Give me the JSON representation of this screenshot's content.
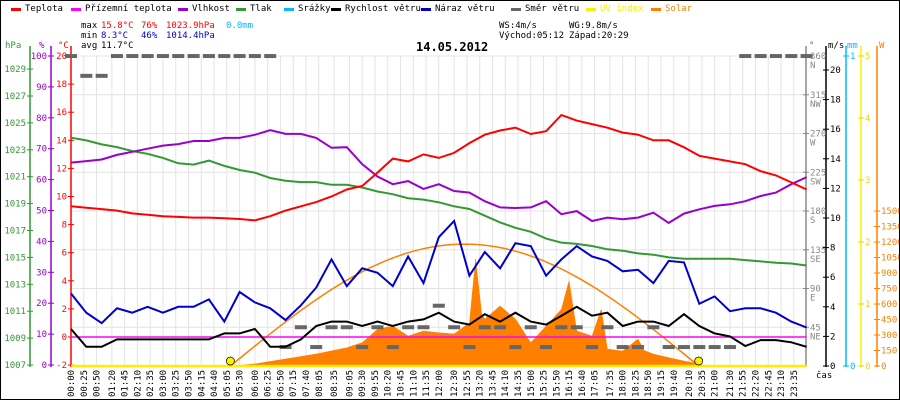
{
  "legend": [
    {
      "label": "Teplota",
      "color": "#ff0000"
    },
    {
      "label": "Přízemní teplota",
      "color": "#ff00ff"
    },
    {
      "label": "Vlhkost",
      "color": "#9900cc"
    },
    {
      "label": "Tlak",
      "color": "#339933"
    },
    {
      "label": "Srážky",
      "color": "#00bbff"
    },
    {
      "label": "Rychlost větru",
      "color": "#000000"
    },
    {
      "label": "Náraz větru",
      "color": "#0000cc"
    },
    {
      "label": "Směr větru",
      "color": "#666666"
    },
    {
      "label": "UV index",
      "color": "#ffee00"
    },
    {
      "label": "Solar",
      "color": "#ff8000"
    }
  ],
  "stats": {
    "max_label": "max",
    "max_temp": "15.8°C",
    "max_hum": "76%",
    "max_pres": "1023.9hPa",
    "rain": "0.0mm",
    "min_label": "min",
    "min_temp": "8.3°C",
    "min_hum": "46%",
    "min_pres": "1014.4hPa",
    "avg_label": "avg",
    "avg_temp": "11.7°C",
    "ws": "WS:4m/s",
    "wg": "WG:9.8m/s",
    "sunrise": "Východ:05:12",
    "sunset": "Západ:20:29"
  },
  "units": {
    "hpa": "hPa",
    "pct": "%",
    "c": "°C",
    "deg": "°",
    "ms": "m/s",
    "mm": "mm",
    "w": "W",
    "time": "čas"
  },
  "chart_data": {
    "type": "line",
    "title": "14.05.2012",
    "xlabel": "čas",
    "x_ticks": [
      "00:00",
      "00:25",
      "00:50",
      "01:20",
      "01:45",
      "02:10",
      "02:35",
      "03:00",
      "03:25",
      "03:50",
      "04:15",
      "04:40",
      "05:05",
      "05:30",
      "06:00",
      "06:25",
      "06:50",
      "07:15",
      "07:40",
      "08:05",
      "08:35",
      "09:05",
      "09:30",
      "09:55",
      "10:20",
      "10:45",
      "11:10",
      "11:35",
      "12:00",
      "12:30",
      "12:55",
      "13:20",
      "13:45",
      "14:10",
      "14:35",
      "15:00",
      "15:25",
      "15:50",
      "16:15",
      "16:40",
      "17:05",
      "17:35",
      "18:00",
      "18:25",
      "18:50",
      "19:15",
      "19:40",
      "20:10",
      "20:35",
      "21:00",
      "21:30",
      "21:55",
      "22:20",
      "22:45",
      "23:10",
      "23:35"
    ],
    "axes": {
      "hpa": {
        "range": [
          1007,
          1029
        ],
        "ticks": [
          "1007",
          "1009",
          "1011",
          "1013",
          "1015",
          "1017",
          "1019",
          "1021",
          "1023",
          "1025",
          "1027",
          "1029"
        ]
      },
      "pct": {
        "range": [
          0,
          100
        ],
        "ticks": [
          "0",
          "10",
          "20",
          "30",
          "40",
          "50",
          "60",
          "70",
          "80",
          "90",
          "100"
        ]
      },
      "temp": {
        "range": [
          -2,
          20
        ],
        "ticks": [
          "-2",
          "0",
          "2",
          "4",
          "6",
          "8",
          "10",
          "12",
          "14",
          "16",
          "18",
          "20"
        ]
      },
      "dir": {
        "range": [
          0,
          360
        ],
        "ticks": [
          "45",
          "90",
          "135",
          "180",
          "225",
          "270",
          "315",
          "360"
        ],
        "compass": [
          "NE",
          "E",
          "SE",
          "S",
          "SW",
          "W",
          "NW",
          "N"
        ]
      },
      "ms": {
        "range": [
          0,
          20
        ],
        "ticks": [
          "0",
          "2",
          "4",
          "6",
          "8",
          "10",
          "12",
          "14",
          "16",
          "18",
          "20"
        ]
      },
      "mm": {
        "range": [
          0,
          1
        ],
        "ticks": [
          "0",
          "1"
        ]
      },
      "uv": {
        "range": [
          0,
          5
        ],
        "ticks": [
          "0",
          "1",
          "2",
          "3",
          "4",
          "5"
        ]
      },
      "w": {
        "range": [
          0,
          1500
        ],
        "ticks": [
          "0",
          "150",
          "300",
          "450",
          "600",
          "750",
          "900",
          "1050",
          "1200",
          "1350",
          "1500"
        ]
      }
    },
    "x_hours": [
      0,
      0.5,
      1,
      1.5,
      2,
      2.5,
      3,
      3.5,
      4,
      4.5,
      5,
      5.5,
      6,
      6.5,
      7,
      7.5,
      8,
      8.5,
      9,
      9.5,
      10,
      10.5,
      11,
      11.5,
      12,
      12.5,
      13,
      13.5,
      14,
      14.5,
      15,
      15.5,
      16,
      16.5,
      17,
      17.5,
      18,
      18.5,
      19,
      19.5,
      20,
      20.5,
      21,
      21.5,
      22,
      22.5,
      23,
      23.5,
      24
    ],
    "series": [
      {
        "name": "Teplota",
        "unit": "°C",
        "values": [
          9.3,
          9.2,
          9.1,
          9.0,
          8.8,
          8.7,
          8.6,
          8.55,
          8.5,
          8.5,
          8.45,
          8.4,
          8.3,
          8.6,
          9.0,
          9.3,
          9.6,
          10.0,
          10.5,
          10.75,
          11.7,
          12.7,
          12.5,
          13.0,
          12.75,
          13.1,
          13.8,
          14.4,
          14.7,
          14.9,
          14.45,
          14.65,
          15.8,
          15.4,
          15.15,
          14.9,
          14.55,
          14.4,
          14.0,
          14.0,
          13.5,
          12.9,
          12.7,
          12.5,
          12.3,
          11.8,
          11.5,
          11.0,
          10.5
        ]
      },
      {
        "name": "Přízemní teplota",
        "unit": "°C",
        "values": [
          0,
          0,
          0,
          0,
          0,
          0,
          0,
          0,
          0,
          0,
          0,
          0,
          0,
          0,
          0,
          0,
          0,
          0,
          0,
          0,
          0,
          0,
          0,
          0,
          0,
          0,
          0,
          0,
          0,
          0,
          0,
          0,
          0,
          0,
          0,
          0,
          0,
          0,
          0,
          0,
          0,
          0,
          0,
          0,
          0,
          0,
          0,
          0,
          0
        ]
      },
      {
        "name": "Vlhkost",
        "unit": "%",
        "values": [
          65.5,
          66,
          66.5,
          68,
          69,
          70,
          71,
          71.5,
          72.5,
          72.5,
          73.5,
          73.5,
          74.5,
          76,
          74.8,
          74.8,
          73.5,
          70.3,
          70.5,
          65,
          61,
          58.5,
          59.5,
          57,
          58.5,
          56.3,
          55.8,
          53,
          51,
          50.8,
          51,
          53,
          48.8,
          49.8,
          46.6,
          47.7,
          47.2,
          47.7,
          49.3,
          46,
          49,
          50.4,
          51.5,
          52,
          53,
          54.7,
          55.8,
          58.5,
          60.8
        ]
      },
      {
        "name": "Tlak",
        "unit": "hPa",
        "values": [
          1023.9,
          1023.7,
          1023.4,
          1023.2,
          1022.9,
          1022.7,
          1022.4,
          1022.0,
          1021.9,
          1022.2,
          1021.8,
          1021.5,
          1021.3,
          1020.9,
          1020.7,
          1020.6,
          1020.6,
          1020.4,
          1020.4,
          1020.2,
          1019.9,
          1019.7,
          1019.4,
          1019.3,
          1019.1,
          1018.8,
          1018.6,
          1018.1,
          1017.6,
          1017.2,
          1016.9,
          1016.4,
          1016.1,
          1016.0,
          1015.85,
          1015.6,
          1015.5,
          1015.3,
          1015.2,
          1015.0,
          1014.9,
          1014.9,
          1014.9,
          1014.9,
          1014.8,
          1014.7,
          1014.6,
          1014.55,
          1014.4
        ]
      },
      {
        "name": "Rychlost větru",
        "unit": "m/s",
        "values": [
          2.5,
          1.3,
          1.3,
          1.8,
          1.8,
          1.8,
          1.8,
          1.8,
          1.8,
          1.8,
          2.2,
          2.2,
          2.5,
          1.3,
          1.3,
          1.8,
          2.7,
          3.0,
          3.0,
          2.7,
          3.0,
          2.7,
          3.0,
          3.15,
          3.6,
          3.0,
          2.8,
          3.5,
          3.0,
          3.6,
          3.0,
          2.8,
          3.4,
          4.0,
          3.4,
          3.6,
          2.7,
          3.0,
          3.0,
          2.7,
          3.5,
          2.7,
          2.2,
          2.0,
          1.35,
          1.75,
          1.75,
          1.6,
          1.3
        ]
      },
      {
        "name": "Náraz větru",
        "unit": "m/s",
        "values": [
          4.9,
          3.6,
          2.9,
          3.9,
          3.6,
          4.0,
          3.6,
          4.0,
          4.0,
          4.5,
          3.0,
          5.0,
          4.3,
          3.9,
          3.1,
          4.1,
          5.3,
          7.2,
          5.4,
          6.6,
          6.3,
          5.4,
          7.4,
          5.6,
          8.7,
          9.8,
          6.1,
          7.7,
          6.6,
          8.3,
          8.1,
          6.1,
          7.2,
          8.1,
          7.4,
          7.1,
          6.4,
          6.5,
          5.6,
          7.1,
          7.0,
          4.2,
          4.7,
          3.7,
          3.9,
          3.9,
          3.6,
          3.0,
          2.6
        ]
      },
      {
        "name": "Směr větru",
        "unit": "°",
        "values": [
          360,
          337,
          337,
          360,
          360,
          360,
          360,
          360,
          360,
          360,
          360,
          360,
          360,
          360,
          22,
          45,
          22,
          45,
          45,
          22,
          45,
          22,
          45,
          45,
          70,
          45,
          22,
          45,
          45,
          22,
          45,
          22,
          45,
          45,
          22,
          45,
          22,
          22,
          45,
          22,
          22,
          22,
          22,
          22,
          360,
          360,
          360,
          360,
          360
        ]
      },
      {
        "name": "UV index",
        "unit": "",
        "values": [
          0,
          0,
          0,
          0,
          0,
          0,
          0,
          0,
          0,
          0,
          0,
          0,
          0,
          0,
          0,
          0,
          0,
          0,
          0,
          0,
          0,
          0,
          0,
          0,
          0,
          0,
          0,
          0,
          0,
          0,
          0,
          0,
          0,
          0,
          0,
          0,
          0,
          0,
          0,
          0,
          0,
          0,
          0,
          0,
          0,
          0,
          0,
          0,
          0
        ]
      },
      {
        "name": "Srážky",
        "unit": "mm",
        "values": [
          0,
          0,
          0,
          0,
          0,
          0,
          0,
          0,
          0,
          0,
          0,
          0,
          0,
          0,
          0,
          0,
          0,
          0,
          0,
          0,
          0,
          0,
          0,
          0,
          0,
          0,
          0,
          0,
          0,
          0,
          0,
          0,
          0,
          0,
          0,
          0,
          0,
          0,
          0,
          0,
          0,
          0,
          0,
          0,
          0,
          0,
          0,
          0,
          0
        ]
      }
    ],
    "solar": {
      "name": "Solar",
      "unit": "W",
      "hours": [
        5.2,
        6,
        7,
        8,
        9,
        9.5,
        10,
        10.5,
        11,
        11.5,
        12,
        12.5,
        13,
        13.2,
        13.4,
        13.5,
        14,
        14.5,
        15,
        15.5,
        16,
        16.25,
        16.5,
        17,
        17.3,
        17.5,
        18,
        18.5,
        18.7,
        19,
        19.5,
        20,
        20.5,
        20.6
      ],
      "values": [
        0,
        20,
        68,
        116,
        177,
        226,
        355,
        387,
        290,
        339,
        322,
        310,
        419,
        1035,
        500,
        455,
        581,
        455,
        226,
        387,
        549,
        823,
        339,
        290,
        550,
        164,
        145,
        261,
        150,
        116,
        81,
        48,
        19,
        0
      ],
      "theoretical": {
        "sunrise_h": 5.2,
        "sunset_h": 20.48,
        "peak_w": 1180
      }
    }
  }
}
